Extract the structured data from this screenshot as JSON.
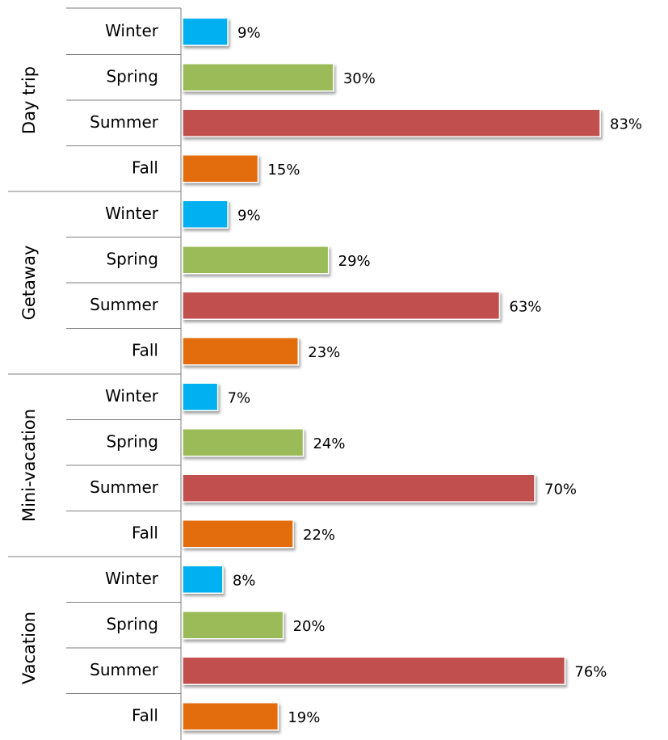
{
  "chart_data": {
    "type": "bar",
    "orientation": "horizontal",
    "categories": [
      "Winter",
      "Spring",
      "Summer",
      "Fall"
    ],
    "colors": [
      "#00b0f0",
      "#9bbb59",
      "#c0504d",
      "#e36c09"
    ],
    "groups": [
      {
        "name": "Day trip",
        "values": [
          9,
          30,
          83,
          15
        ],
        "value_labels": [
          "9%",
          "30%",
          "83%",
          "15%"
        ]
      },
      {
        "name": "Getaway",
        "values": [
          9,
          29,
          63,
          23
        ],
        "value_labels": [
          "9%",
          "29%",
          "63%",
          "23%"
        ]
      },
      {
        "name": "Mini-vacation",
        "values": [
          7,
          24,
          70,
          22
        ],
        "value_labels": [
          "7%",
          "24%",
          "70%",
          "22%"
        ]
      },
      {
        "name": "Vacation",
        "values": [
          8,
          20,
          76,
          19
        ],
        "value_labels": [
          "8%",
          "20%",
          "76%",
          "19%"
        ]
      }
    ]
  }
}
